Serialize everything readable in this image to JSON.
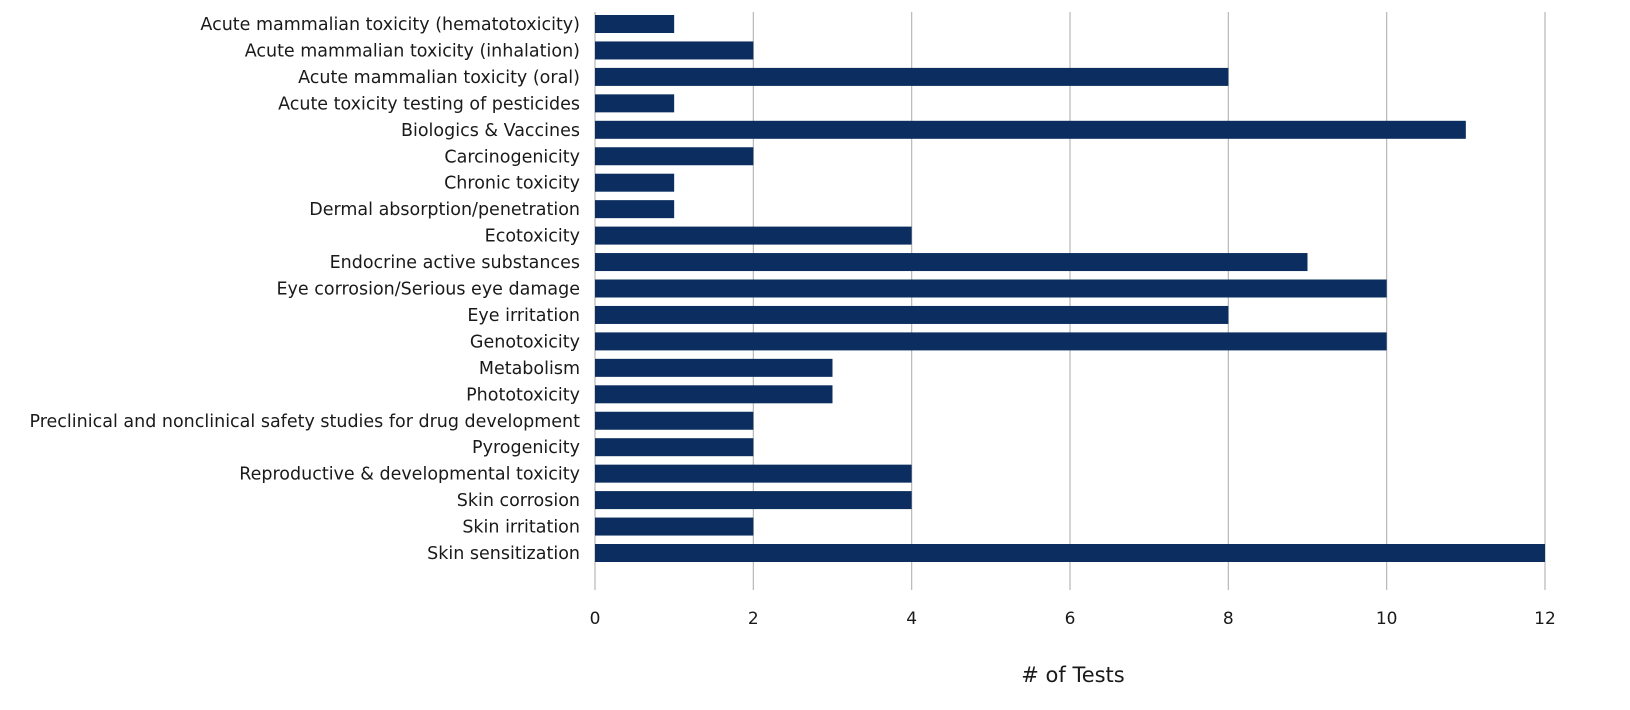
{
  "chart_data": {
    "type": "bar",
    "orientation": "horizontal",
    "categories": [
      "Acute mammalian toxicity (hematotoxicity)",
      "Acute mammalian toxicity (inhalation)",
      "Acute mammalian toxicity (oral)",
      "Acute toxicity testing of pesticides",
      "Biologics & Vaccines",
      "Carcinogenicity",
      "Chronic toxicity",
      "Dermal absorption/penetration",
      "Ecotoxicity",
      "Endocrine active substances",
      "Eye corrosion/Serious eye damage",
      "Eye irritation",
      "Genotoxicity",
      "Metabolism",
      "Phototoxicity",
      "Preclinical and nonclinical safety studies for drug development",
      "Pyrogenicity",
      "Reproductive & developmental toxicity",
      "Skin corrosion",
      "Skin irritation",
      "Skin sensitization"
    ],
    "values": [
      1,
      2,
      8,
      1,
      11,
      2,
      1,
      1,
      4,
      9,
      10,
      8,
      10,
      3,
      3,
      2,
      2,
      4,
      4,
      2,
      12
    ],
    "title": "",
    "xlabel": "# of Tests",
    "ylabel": "",
    "xlim": [
      0,
      12
    ],
    "xticks": [
      "0",
      "2",
      "4",
      "6",
      "8",
      "10",
      "12"
    ],
    "grid": "vertical",
    "legend": "none",
    "colors": {
      "bar": "#0b2d5f",
      "grid": "#b8b8b8",
      "text": "#1a1a1a"
    }
  }
}
